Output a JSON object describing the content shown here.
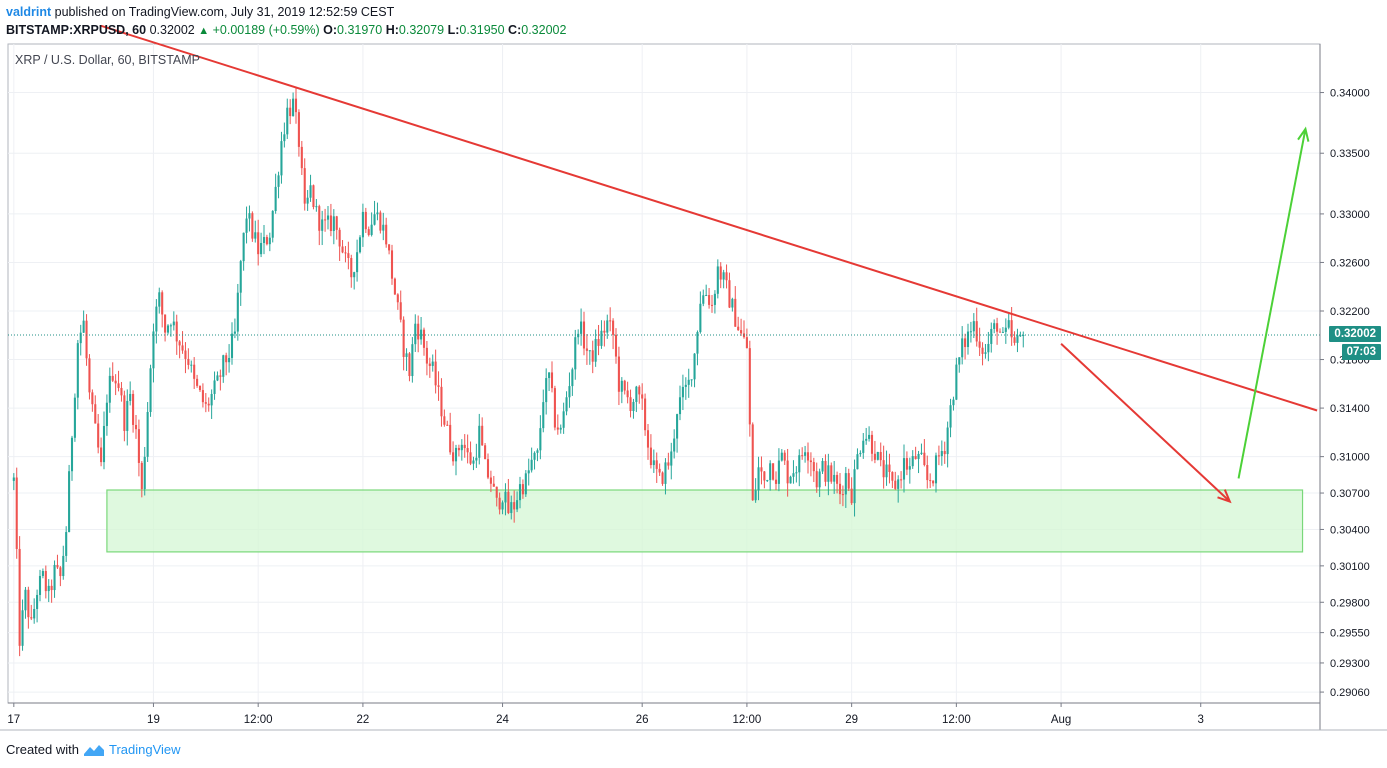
{
  "header": {
    "user": "valdrint",
    "published_text": "published on TradingView.com, July 31, 2019 12:52:59 CEST",
    "symbol": "BITSTAMP:XRPUSD, 60",
    "last_price": "0.32002",
    "change": "+0.00189 (+0.59%)",
    "open_label": "O:",
    "open": "0.31970",
    "high_label": "H:",
    "high": "0.32079",
    "low_label": "L:",
    "low": "0.31950",
    "close_label": "C:",
    "close": "0.32002"
  },
  "pane_title": "XRP / U.S. Dollar, 60, BITSTAMP",
  "footer": {
    "created_with": "Created with",
    "brand": "TradingView"
  },
  "price_tags": {
    "current": "0.32002",
    "countdown": "07:03"
  },
  "colors": {
    "up": "#26a69a",
    "down": "#ef5350",
    "trendline": "#e53935",
    "up_arrow": "#4cd137",
    "zone_fill": "#d4f7d4",
    "zone_border": "#7ad87a",
    "tag_bg": "#1f8f85"
  },
  "chart_data": {
    "type": "candlestick",
    "y_ticks": [
      "0.34000",
      "0.33500",
      "0.33000",
      "0.32600",
      "0.32200",
      "0.31800",
      "0.31400",
      "0.31000",
      "0.30700",
      "0.30400",
      "0.30100",
      "0.29800",
      "0.29550",
      "0.29300",
      "0.29060"
    ],
    "y_tick_values": [
      0.34,
      0.335,
      0.33,
      0.326,
      0.322,
      0.318,
      0.314,
      0.31,
      0.307,
      0.304,
      0.301,
      0.298,
      0.2955,
      0.293,
      0.2906
    ],
    "x_ticks": [
      {
        "label": "17",
        "t": 0
      },
      {
        "label": "19",
        "t": 48
      },
      {
        "label": "12:00",
        "t": 84
      },
      {
        "label": "22",
        "t": 120
      },
      {
        "label": "24",
        "t": 168
      },
      {
        "label": "26",
        "t": 216
      },
      {
        "label": "12:00",
        "t": 252
      },
      {
        "label": "29",
        "t": 288
      },
      {
        "label": "12:00",
        "t": 324
      },
      {
        "label": "Aug",
        "t": 360
      },
      {
        "label": "3",
        "t": 408
      }
    ],
    "ylim": [
      0.2897,
      0.344
    ],
    "xlim": [
      -2,
      449
    ],
    "last_t": 347,
    "current_price": 0.32002,
    "path": [
      [
        0,
        0.308
      ],
      [
        2,
        0.295
      ],
      [
        4,
        0.2985
      ],
      [
        6,
        0.296
      ],
      [
        8,
        0.299
      ],
      [
        10,
        0.3
      ],
      [
        12,
        0.2985
      ],
      [
        14,
        0.3005
      ],
      [
        16,
        0.3
      ],
      [
        18,
        0.304
      ],
      [
        20,
        0.312
      ],
      [
        22,
        0.3195
      ],
      [
        24,
        0.321
      ],
      [
        26,
        0.315
      ],
      [
        28,
        0.312
      ],
      [
        30,
        0.309
      ],
      [
        32,
        0.315
      ],
      [
        34,
        0.317
      ],
      [
        36,
        0.316
      ],
      [
        38,
        0.313
      ],
      [
        40,
        0.315
      ],
      [
        42,
        0.312
      ],
      [
        44,
        0.307
      ],
      [
        46,
        0.314
      ],
      [
        48,
        0.321
      ],
      [
        50,
        0.323
      ],
      [
        52,
        0.3205
      ],
      [
        54,
        0.3215
      ],
      [
        56,
        0.32
      ],
      [
        58,
        0.319
      ],
      [
        60,
        0.318
      ],
      [
        62,
        0.316
      ],
      [
        64,
        0.315
      ],
      [
        66,
        0.314
      ],
      [
        68,
        0.315
      ],
      [
        70,
        0.316
      ],
      [
        72,
        0.3175
      ],
      [
        74,
        0.3185
      ],
      [
        76,
        0.32
      ],
      [
        78,
        0.326
      ],
      [
        80,
        0.33
      ],
      [
        82,
        0.3285
      ],
      [
        84,
        0.327
      ],
      [
        86,
        0.3275
      ],
      [
        88,
        0.3285
      ],
      [
        90,
        0.332
      ],
      [
        92,
        0.336
      ],
      [
        94,
        0.3385
      ],
      [
        96,
        0.339
      ],
      [
        98,
        0.336
      ],
      [
        100,
        0.33
      ],
      [
        102,
        0.332
      ],
      [
        104,
        0.33
      ],
      [
        106,
        0.329
      ],
      [
        108,
        0.329
      ],
      [
        110,
        0.3295
      ],
      [
        112,
        0.328
      ],
      [
        114,
        0.326
      ],
      [
        116,
        0.325
      ],
      [
        118,
        0.327
      ],
      [
        120,
        0.33
      ],
      [
        122,
        0.329
      ],
      [
        124,
        0.33
      ],
      [
        126,
        0.3295
      ],
      [
        128,
        0.328
      ],
      [
        130,
        0.325
      ],
      [
        132,
        0.322
      ],
      [
        134,
        0.319
      ],
      [
        136,
        0.317
      ],
      [
        138,
        0.321
      ],
      [
        140,
        0.32
      ],
      [
        142,
        0.318
      ],
      [
        144,
        0.317
      ],
      [
        146,
        0.315
      ],
      [
        148,
        0.313
      ],
      [
        150,
        0.311
      ],
      [
        152,
        0.31
      ],
      [
        154,
        0.3115
      ],
      [
        156,
        0.31
      ],
      [
        158,
        0.3095
      ],
      [
        160,
        0.312
      ],
      [
        162,
        0.309
      ],
      [
        164,
        0.308
      ],
      [
        166,
        0.306
      ],
      [
        168,
        0.307
      ],
      [
        170,
        0.3055
      ],
      [
        172,
        0.306
      ],
      [
        174,
        0.3075
      ],
      [
        176,
        0.308
      ],
      [
        178,
        0.3095
      ],
      [
        180,
        0.31
      ],
      [
        182,
        0.315
      ],
      [
        184,
        0.3165
      ],
      [
        186,
        0.313
      ],
      [
        188,
        0.312
      ],
      [
        190,
        0.315
      ],
      [
        192,
        0.3175
      ],
      [
        194,
        0.321
      ],
      [
        196,
        0.3195
      ],
      [
        198,
        0.318
      ],
      [
        200,
        0.319
      ],
      [
        202,
        0.32
      ],
      [
        204,
        0.321
      ],
      [
        206,
        0.32
      ],
      [
        208,
        0.316
      ],
      [
        210,
        0.315
      ],
      [
        212,
        0.3145
      ],
      [
        214,
        0.315
      ],
      [
        216,
        0.314
      ],
      [
        218,
        0.311
      ],
      [
        220,
        0.309
      ],
      [
        222,
        0.308
      ],
      [
        224,
        0.309
      ],
      [
        226,
        0.31
      ],
      [
        228,
        0.314
      ],
      [
        230,
        0.315
      ],
      [
        232,
        0.316
      ],
      [
        234,
        0.3185
      ],
      [
        236,
        0.323
      ],
      [
        238,
        0.3235
      ],
      [
        240,
        0.3225
      ],
      [
        242,
        0.3255
      ],
      [
        244,
        0.3245
      ],
      [
        246,
        0.323
      ],
      [
        248,
        0.3215
      ],
      [
        250,
        0.32
      ],
      [
        252,
        0.319
      ],
      [
        254,
        0.306
      ],
      [
        256,
        0.309
      ],
      [
        258,
        0.308
      ],
      [
        260,
        0.3095
      ],
      [
        262,
        0.3085
      ],
      [
        264,
        0.31
      ],
      [
        266,
        0.3085
      ],
      [
        268,
        0.309
      ],
      [
        270,
        0.3095
      ],
      [
        272,
        0.311
      ],
      [
        274,
        0.31
      ],
      [
        276,
        0.308
      ],
      [
        278,
        0.309
      ],
      [
        280,
        0.3085
      ],
      [
        282,
        0.308
      ],
      [
        284,
        0.307
      ],
      [
        286,
        0.3085
      ],
      [
        288,
        0.307
      ],
      [
        290,
        0.31
      ],
      [
        292,
        0.312
      ],
      [
        294,
        0.3115
      ],
      [
        296,
        0.3105
      ],
      [
        298,
        0.309
      ],
      [
        300,
        0.3085
      ],
      [
        302,
        0.3075
      ],
      [
        304,
        0.308
      ],
      [
        306,
        0.3095
      ],
      [
        308,
        0.309
      ],
      [
        310,
        0.31
      ],
      [
        312,
        0.3095
      ],
      [
        314,
        0.308
      ],
      [
        316,
        0.3085
      ],
      [
        318,
        0.31
      ],
      [
        320,
        0.311
      ],
      [
        322,
        0.314
      ],
      [
        324,
        0.317
      ],
      [
        326,
        0.319
      ],
      [
        328,
        0.32
      ],
      [
        330,
        0.321
      ],
      [
        332,
        0.3195
      ],
      [
        334,
        0.3185
      ],
      [
        336,
        0.32
      ],
      [
        338,
        0.321
      ],
      [
        340,
        0.3195
      ],
      [
        342,
        0.3205
      ],
      [
        344,
        0.319
      ],
      [
        346,
        0.3197
      ],
      [
        347,
        0.32002
      ]
    ],
    "annotations": {
      "resistance_line": {
        "from": [
          30,
          0.3455
        ],
        "to": [
          448,
          0.3138
        ]
      },
      "support_zone": {
        "t_from": 32,
        "t_to": 443,
        "y_top": 0.30725,
        "y_bottom": 0.30215
      },
      "down_arrow": {
        "from": [
          360,
          0.3193
        ],
        "to": [
          418,
          0.3063
        ]
      },
      "up_arrow": {
        "from": [
          421,
          0.3082
        ],
        "to": [
          444,
          0.337
        ]
      }
    }
  }
}
